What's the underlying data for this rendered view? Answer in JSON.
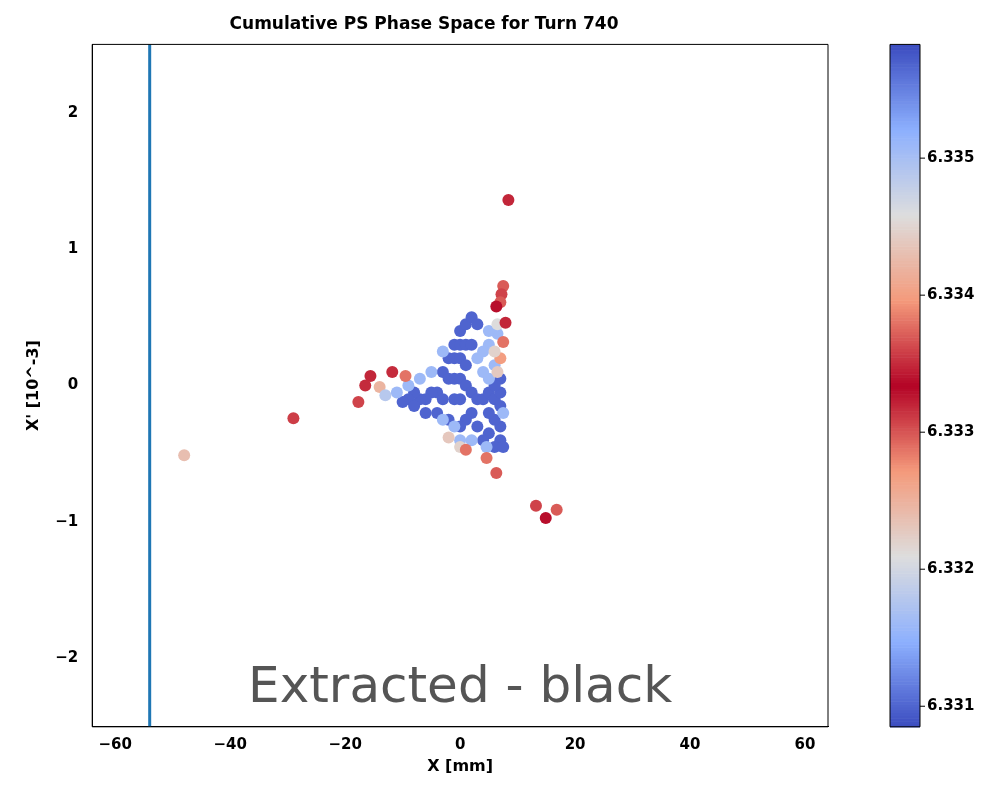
{
  "chart_data": {
    "type": "scatter",
    "title": "Cumulative PS Phase Space for Turn 740",
    "xlabel": "X [mm]",
    "ylabel": "X' [10^-3]",
    "xlim": [
      -64,
      64
    ],
    "ylim": [
      -2.5,
      2.5
    ],
    "xticks": [
      {
        "value": -60,
        "label": "−60"
      },
      {
        "value": -40,
        "label": "−40"
      },
      {
        "value": -20,
        "label": "−20"
      },
      0,
      20,
      40,
      60
    ],
    "yticks": [
      {
        "value": -2,
        "label": "−2"
      },
      {
        "value": -1,
        "label": "−1"
      },
      0,
      1,
      2
    ],
    "clim": [
      6.33085,
      6.33583
    ],
    "cticks": [
      6.331,
      6.332,
      6.333,
      6.334,
      6.335
    ],
    "grid": false,
    "legend": false,
    "marker": "circle",
    "ref_lines": [
      {
        "axis": "x",
        "value": -54,
        "color": "#1f77b4"
      }
    ],
    "annotations": [
      "Extracted - black"
    ],
    "series": [
      {
        "x": [
          0,
          1,
          2,
          3,
          -1,
          0,
          1,
          2,
          -2,
          -1,
          0,
          1,
          -3,
          -2,
          -1,
          0,
          1,
          -4,
          -5,
          -6,
          -7,
          -8,
          -9,
          -10,
          -3,
          -1,
          0,
          2,
          3,
          4,
          5,
          6,
          7,
          7,
          6,
          5,
          7,
          7,
          6,
          2,
          1,
          -4,
          -6,
          -8,
          3,
          5,
          7,
          6,
          4,
          7.5,
          -2,
          0,
          3,
          4,
          5,
          -5,
          -7,
          -3,
          -1,
          -3,
          0,
          2,
          6,
          5,
          4,
          -11,
          -9,
          6.5,
          5,
          4.6,
          7.5,
          6.5,
          7,
          6,
          0,
          6.5,
          -2,
          8.4,
          -48,
          -29,
          7.5,
          7.2,
          7,
          6.3,
          7.9,
          7.5,
          -15.6,
          -16.5,
          -17.7,
          -11.8,
          -9.5,
          -14,
          -13,
          1,
          4.6,
          6.3,
          13.2,
          14.9,
          16.8
        ],
        "values": [
          0.4,
          0.45,
          0.5,
          0.45,
          0.3,
          0.3,
          0.3,
          0.3,
          0.2,
          0.2,
          0.2,
          0.15,
          0.1,
          0.05,
          0.05,
          0.05,
          0,
          -0.05,
          -0.05,
          -0.1,
          -0.1,
          -0.05,
          -0.1,
          -0.12,
          -0.1,
          -0.1,
          -0.1,
          -0.05,
          -0.1,
          -0.1,
          -0.05,
          -0.1,
          -0.15,
          -0.3,
          -0.25,
          -0.2,
          -0.05,
          0.05,
          0,
          -0.2,
          -0.25,
          -0.2,
          -0.2,
          -0.15,
          -0.3,
          -0.35,
          -0.4,
          -0.45,
          -0.4,
          -0.45,
          -0.25,
          -0.3,
          0.2,
          0.1,
          0.05,
          0.1,
          0.05,
          0.25,
          -0.3,
          -0.25,
          -0.4,
          -0.4,
          0.15,
          0.3,
          0.25,
          -0.05,
          0,
          0.38,
          0.4,
          -0.45,
          -0.2,
          0.1,
          0.2,
          0.25,
          -0.45,
          0.45,
          -0.38,
          1.36,
          -0.51,
          -0.24,
          0.73,
          0.67,
          0.61,
          0.58,
          0.46,
          0.32,
          0.07,
          0,
          -0.12,
          0.1,
          0.07,
          -0.01,
          -0.07,
          -0.47,
          -0.53,
          -0.64,
          -0.88,
          -0.97,
          -0.91
        ],
        "cvalues": [
          6.331,
          6.331,
          6.331,
          6.331,
          6.331,
          6.331,
          6.331,
          6.331,
          6.331,
          6.331,
          6.331,
          6.331,
          6.331,
          6.331,
          6.331,
          6.331,
          6.331,
          6.331,
          6.331,
          6.331,
          6.331,
          6.331,
          6.331,
          6.331,
          6.331,
          6.331,
          6.331,
          6.331,
          6.331,
          6.331,
          6.331,
          6.331,
          6.331,
          6.331,
          6.331,
          6.331,
          6.331,
          6.331,
          6.331,
          6.331,
          6.331,
          6.331,
          6.331,
          6.331,
          6.331,
          6.331,
          6.331,
          6.331,
          6.331,
          6.331,
          6.331,
          6.331,
          6.3316,
          6.3316,
          6.3316,
          6.3316,
          6.3316,
          6.3316,
          6.3316,
          6.3316,
          6.3316,
          6.3316,
          6.3316,
          6.3316,
          6.3316,
          6.3316,
          6.3316,
          6.3316,
          6.3316,
          6.3316,
          6.3316,
          6.3344,
          6.334,
          6.3322,
          6.3322,
          6.3321,
          6.3323,
          6.3332,
          6.3343,
          6.3331,
          6.3337,
          6.3336,
          6.3337,
          6.3333,
          6.3332,
          6.3338,
          6.3332,
          6.3335,
          6.3336,
          6.3335,
          6.3338,
          6.3342,
          6.3318,
          6.3338,
          6.3338,
          6.3337,
          6.3336,
          6.3333,
          6.3337
        ]
      }
    ]
  }
}
